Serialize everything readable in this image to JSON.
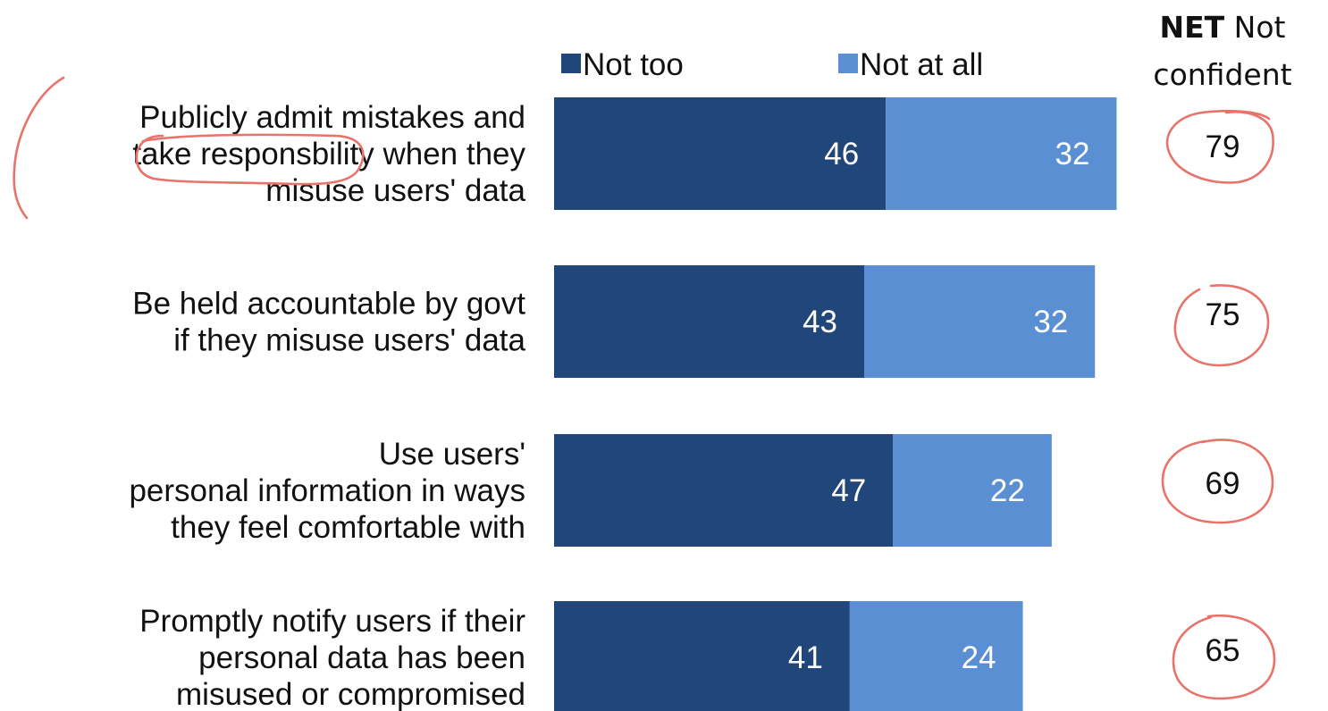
{
  "colors": {
    "not_too": "#214679",
    "not_at_all": "#5b8fd4",
    "annotation": "#e8736b"
  },
  "net_header": {
    "bold": "NET",
    "rest_line1": "Not",
    "line2": "confident"
  },
  "chart_data": {
    "type": "bar",
    "orientation": "horizontal",
    "stacked": true,
    "title": "",
    "xlabel": "",
    "ylabel": "",
    "xlim": [
      0,
      80
    ],
    "grid": false,
    "legend_position": "top",
    "categories": [
      [
        "Publicly admit mistakes and",
        "take responsbility when they",
        "misuse users' data"
      ],
      [
        "Be held accountable by govt",
        "if they misuse users' data"
      ],
      [
        "Use users'",
        "personal information in ways",
        "they feel comfortable with"
      ],
      [
        "Promptly notify users if their",
        "personal data has been",
        "misused or compromised"
      ]
    ],
    "series": [
      {
        "name": "Not too",
        "values": [
          46,
          43,
          47,
          41
        ]
      },
      {
        "name": "Not at all",
        "values": [
          32,
          32,
          22,
          24
        ]
      }
    ],
    "net_values": [
      79,
      75,
      69,
      65
    ]
  }
}
